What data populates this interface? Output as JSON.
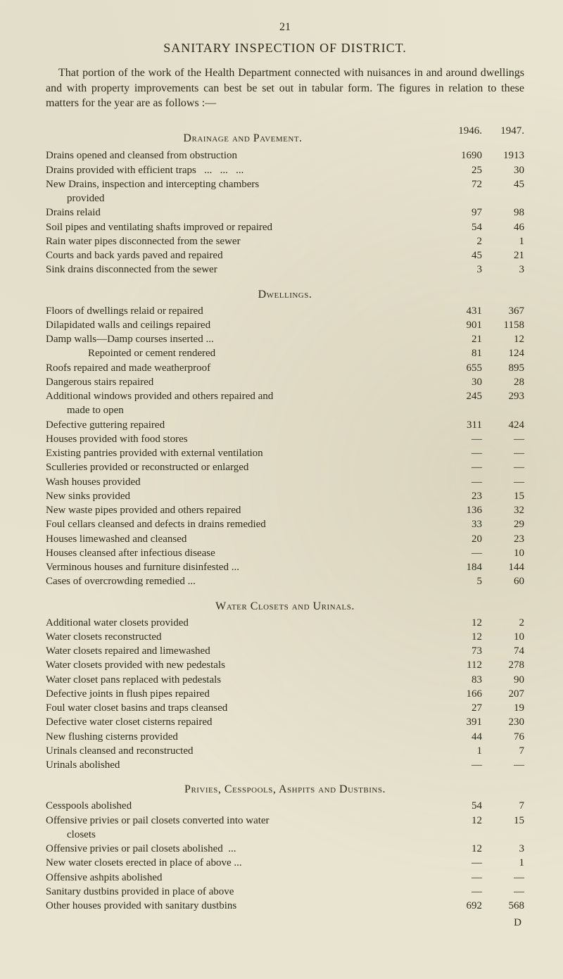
{
  "page_number": "21",
  "title": "SANITARY INSPECTION OF DISTRICT.",
  "intro": "That portion of the work of the Health Department connected with nuisances in and around dwellings and with property improvements can best be set out in tabular form. The figures in relation to these matters for the year are as follows :—",
  "year_cols": {
    "c1": "1946.",
    "c2": "1947."
  },
  "sections": {
    "drainage": {
      "heading": "Drainage and Pavement.",
      "rows": [
        {
          "label": "Drains opened and cleansed from obstruction",
          "c1": "1690",
          "c2": "1913"
        },
        {
          "label": "Drains provided with efficient traps   ...   ...   ...",
          "c1": "25",
          "c2": "30"
        },
        {
          "label": "New Drains, inspection and intercepting chambers\n        provided",
          "c1": "72",
          "c2": "45"
        },
        {
          "label": "Drains relaid",
          "c1": "97",
          "c2": "98"
        },
        {
          "label": "Soil pipes and ventilating shafts improved or repaired",
          "c1": "54",
          "c2": "46"
        },
        {
          "label": "Rain water pipes disconnected from the sewer",
          "c1": "2",
          "c2": "1"
        },
        {
          "label": "Courts and back yards paved and repaired",
          "c1": "45",
          "c2": "21"
        },
        {
          "label": "Sink drains disconnected from the sewer",
          "c1": "3",
          "c2": "3"
        }
      ]
    },
    "dwellings": {
      "heading": "Dwellings.",
      "rows": [
        {
          "label": "Floors of dwellings relaid or repaired",
          "c1": "431",
          "c2": "367"
        },
        {
          "label": "Dilapidated walls and ceilings repaired",
          "c1": "901",
          "c2": "1158"
        },
        {
          "label": "Damp walls—Damp courses inserted ...",
          "c1": "21",
          "c2": "12"
        },
        {
          "label": "                Repointed or cement rendered",
          "c1": "81",
          "c2": "124"
        },
        {
          "label": "Roofs repaired and made weatherproof",
          "c1": "655",
          "c2": "895"
        },
        {
          "label": "Dangerous stairs repaired",
          "c1": "30",
          "c2": "28"
        },
        {
          "label": "Additional windows provided and others repaired and\n        made to open",
          "c1": "245",
          "c2": "293"
        },
        {
          "label": "Defective guttering repaired",
          "c1": "311",
          "c2": "424"
        },
        {
          "label": "Houses provided with food stores",
          "c1": "—",
          "c2": "—"
        },
        {
          "label": "Existing pantries provided with external ventilation",
          "c1": "—",
          "c2": "—"
        },
        {
          "label": "Sculleries provided or reconstructed or enlarged",
          "c1": "—",
          "c2": "—"
        },
        {
          "label": "Wash houses provided",
          "c1": "—",
          "c2": "—"
        },
        {
          "label": "New sinks provided",
          "c1": "23",
          "c2": "15"
        },
        {
          "label": "New waste pipes provided and others repaired",
          "c1": "136",
          "c2": "32"
        },
        {
          "label": "Foul cellars cleansed and defects in drains remedied",
          "c1": "33",
          "c2": "29"
        },
        {
          "label": "Houses limewashed and cleansed",
          "c1": "20",
          "c2": "23"
        },
        {
          "label": "Houses cleansed after infectious disease",
          "c1": "—",
          "c2": "10"
        },
        {
          "label": "Verminous houses and furniture disinfested ...",
          "c1": "184",
          "c2": "144"
        },
        {
          "label": "Cases of overcrowding remedied ...",
          "c1": "5",
          "c2": "60"
        }
      ]
    },
    "water": {
      "heading": "Water Closets and Urinals.",
      "rows": [
        {
          "label": "Additional water closets provided",
          "c1": "12",
          "c2": "2"
        },
        {
          "label": "Water closets reconstructed",
          "c1": "12",
          "c2": "10"
        },
        {
          "label": "Water closets repaired and limewashed",
          "c1": "73",
          "c2": "74"
        },
        {
          "label": "Water closets provided with new pedestals",
          "c1": "112",
          "c2": "278"
        },
        {
          "label": "Water closet pans replaced with pedestals",
          "c1": "83",
          "c2": "90"
        },
        {
          "label": "Defective joints in flush pipes repaired",
          "c1": "166",
          "c2": "207"
        },
        {
          "label": "Foul water closet basins and traps cleansed",
          "c1": "27",
          "c2": "19"
        },
        {
          "label": "Defective water closet cisterns repaired",
          "c1": "391",
          "c2": "230"
        },
        {
          "label": "New flushing cisterns provided",
          "c1": "44",
          "c2": "76"
        },
        {
          "label": "Urinals cleansed and reconstructed",
          "c1": "1",
          "c2": "7"
        },
        {
          "label": "Urinals abolished",
          "c1": "—",
          "c2": "—"
        }
      ]
    },
    "privies": {
      "heading": "Privies, Cesspools, Ashpits and Dustbins.",
      "rows": [
        {
          "label": "Cesspools abolished",
          "c1": "54",
          "c2": "7"
        },
        {
          "label": "Offensive privies or pail closets converted into water\n        closets",
          "c1": "12",
          "c2": "15"
        },
        {
          "label": "Offensive privies or pail closets abolished  ...",
          "c1": "12",
          "c2": "3"
        },
        {
          "label": "New water closets erected in place of above ...",
          "c1": "—",
          "c2": "1"
        },
        {
          "label": "Offensive ashpits abolished",
          "c1": "—",
          "c2": "—"
        },
        {
          "label": "Sanitary dustbins provided in place of above",
          "c1": "—",
          "c2": "—"
        },
        {
          "label": "Other houses provided with sanitary dustbins",
          "c1": "692",
          "c2": "568"
        }
      ]
    }
  },
  "footer_mark": "D"
}
